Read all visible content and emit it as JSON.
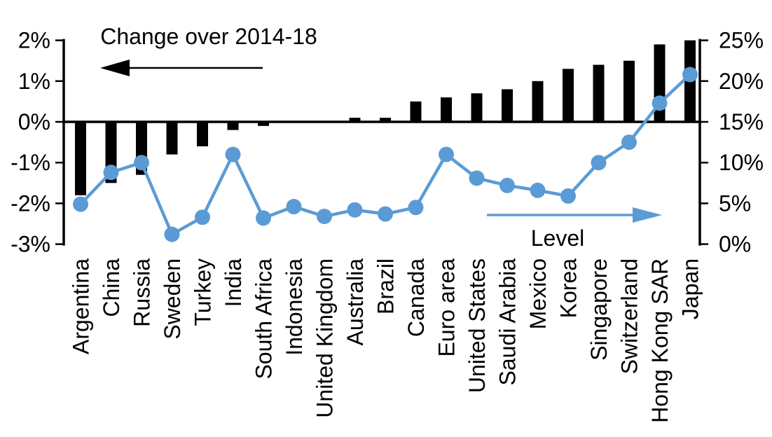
{
  "chart_data": {
    "type": "combo-bar-line-dual-axis",
    "background": "#ffffff",
    "grid": "off",
    "legend_position": "in-plot-annotations",
    "categories": [
      "Argentina",
      "China",
      "Russia",
      "Sweden",
      "Turkey",
      "India",
      "South Africa",
      "Indonesia",
      "United Kingdom",
      "Australia",
      "Brazil",
      "Canada",
      "Euro area",
      "United States",
      "Saudi Arabia",
      "Mexico",
      "Korea",
      "Singapore",
      "Switzerland",
      "Hong Kong SAR",
      "Japan"
    ],
    "series": [
      {
        "name": "Change over 2014-18",
        "type": "bar",
        "axis": "left",
        "color": "#000000",
        "unit": "%",
        "values": [
          -1.8,
          -1.5,
          -1.3,
          -0.8,
          -0.6,
          -0.2,
          -0.1,
          0,
          0,
          0.1,
          0.1,
          0.5,
          0.6,
          0.7,
          0.8,
          1.0,
          1.3,
          1.4,
          1.5,
          1.9,
          2.0
        ]
      },
      {
        "name": "Level",
        "type": "line-with-markers",
        "axis": "right",
        "color": "#5B9BD5",
        "unit": "%",
        "values": [
          4.9,
          8.8,
          10.0,
          1.2,
          3.3,
          11.0,
          3.2,
          4.6,
          3.4,
          4.2,
          3.7,
          4.5,
          11.0,
          8.1,
          7.2,
          6.6,
          5.9,
          10.0,
          12.5,
          17.3,
          20.8
        ]
      }
    ],
    "left_axis": {
      "tick_labels": [
        "2%",
        "1%",
        "0%",
        "-1%",
        "-2%",
        "-3%"
      ],
      "tick_values": [
        2,
        1,
        0,
        -1,
        -2,
        -3
      ],
      "range": [
        -3,
        2
      ]
    },
    "right_axis": {
      "tick_labels": [
        "25%",
        "20%",
        "15%",
        "10%",
        "5%",
        "0%"
      ],
      "tick_values": [
        25,
        20,
        15,
        10,
        5,
        0
      ],
      "range": [
        0,
        25
      ]
    },
    "annotations": [
      {
        "id": "bar-series-label",
        "text": "Change over 2014-18",
        "arrow_direction": "left",
        "color": "#000000"
      },
      {
        "id": "line-series-label",
        "text": "Level",
        "arrow_direction": "right",
        "color": "#5B9BD5"
      }
    ]
  }
}
